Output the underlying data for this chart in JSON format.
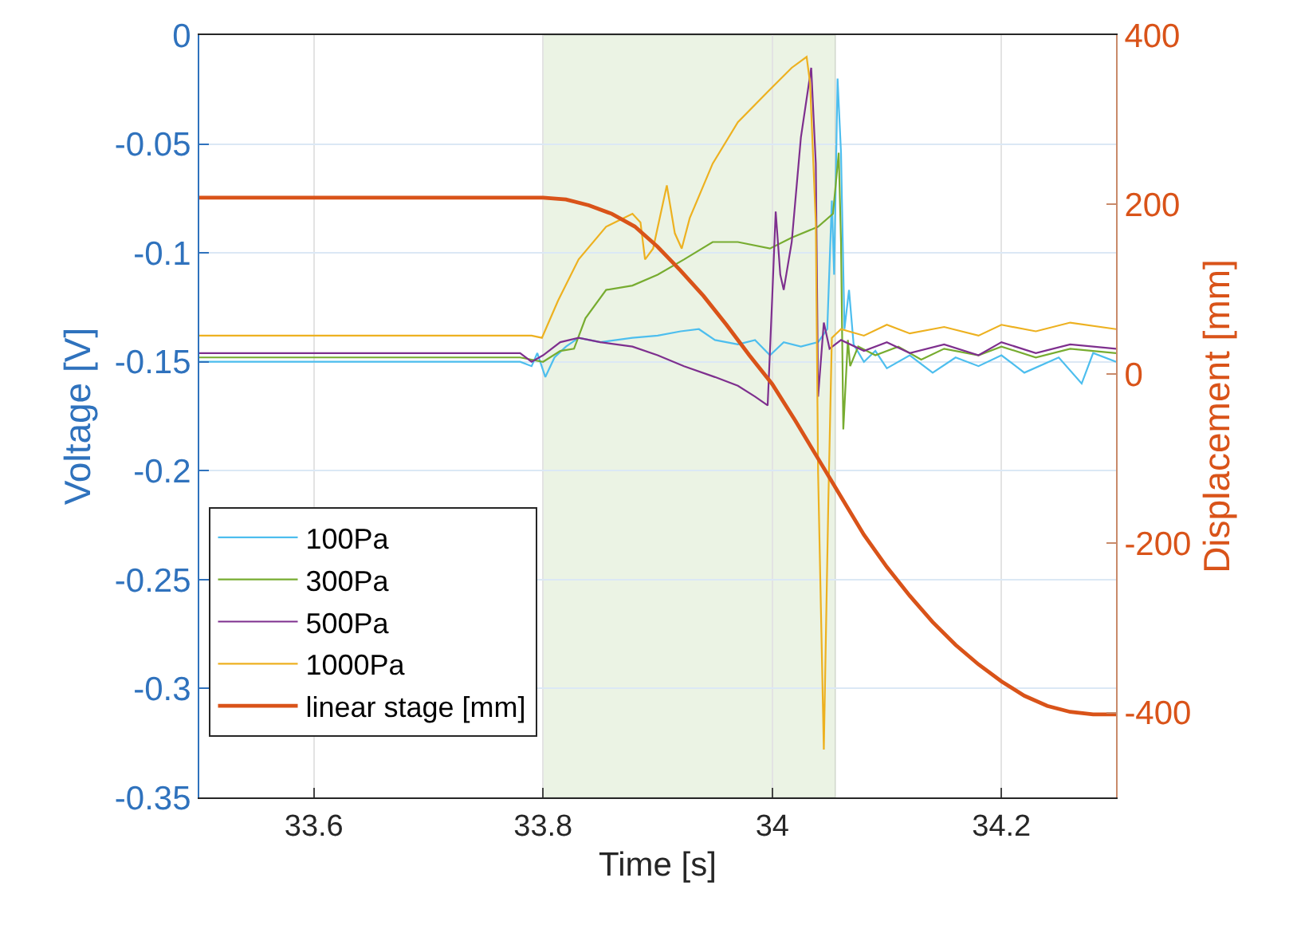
{
  "chart_data": {
    "type": "line",
    "xlabel": "Time [s]",
    "ylabel": "Voltage [V]",
    "y2label": "Displacement [mm]",
    "xlim": [
      33.5,
      34.3
    ],
    "xticks": [
      33.6,
      33.8,
      34,
      34.2
    ],
    "ylim": [
      -0.35,
      0
    ],
    "yticks": [
      0,
      -0.05,
      -0.1,
      -0.15,
      -0.2,
      -0.25,
      -0.3,
      -0.35
    ],
    "y2lim": [
      -500,
      400
    ],
    "y2ticks": [
      400,
      200,
      0,
      -200,
      -400
    ],
    "grid": true,
    "legend": "bottom left",
    "line_style": "solid",
    "marker": "none",
    "bands": [
      {
        "axis": "x",
        "from": 33.8,
        "to": 34.055,
        "color": "#ebf3e4"
      }
    ],
    "series": [
      {
        "name": "100Pa",
        "color": "#4dbeee",
        "x": [
          33.5,
          33.6,
          33.7,
          33.78,
          33.79,
          33.795,
          33.802,
          33.81,
          33.82,
          33.831,
          33.85,
          33.878,
          33.9,
          33.92,
          33.936,
          33.95,
          33.97,
          33.985,
          33.998,
          34.01,
          34.025,
          34.04,
          34.048,
          34.052,
          34.054,
          34.057,
          34.06,
          34.063,
          34.067,
          34.071,
          34.08,
          34.09,
          34.1,
          34.12,
          34.14,
          34.16,
          34.18,
          34.2,
          34.22,
          34.25,
          34.27,
          34.28,
          34.3
        ],
        "values": [
          -0.15,
          -0.15,
          -0.15,
          -0.15,
          -0.152,
          -0.146,
          -0.157,
          -0.148,
          -0.143,
          -0.139,
          -0.141,
          -0.139,
          -0.138,
          -0.136,
          -0.135,
          -0.14,
          -0.142,
          -0.14,
          -0.147,
          -0.141,
          -0.143,
          -0.141,
          -0.135,
          -0.076,
          -0.11,
          -0.02,
          -0.054,
          -0.135,
          -0.117,
          -0.142,
          -0.15,
          -0.145,
          -0.153,
          -0.147,
          -0.155,
          -0.148,
          -0.152,
          -0.147,
          -0.155,
          -0.148,
          -0.16,
          -0.146,
          -0.15
        ]
      },
      {
        "name": "300Pa",
        "color": "#77ac30",
        "x": [
          33.5,
          33.78,
          33.8,
          33.815,
          33.827,
          33.837,
          33.855,
          33.878,
          33.9,
          33.923,
          33.948,
          33.97,
          33.998,
          34.017,
          34.04,
          34.053,
          34.058,
          34.06,
          34.062,
          34.066,
          34.068,
          34.075,
          34.09,
          34.11,
          34.13,
          34.15,
          34.18,
          34.2,
          34.23,
          34.26,
          34.3
        ],
        "values": [
          -0.148,
          -0.148,
          -0.15,
          -0.145,
          -0.144,
          -0.13,
          -0.117,
          -0.115,
          -0.11,
          -0.103,
          -0.095,
          -0.095,
          -0.098,
          -0.093,
          -0.088,
          -0.082,
          -0.054,
          -0.095,
          -0.181,
          -0.14,
          -0.152,
          -0.143,
          -0.147,
          -0.143,
          -0.149,
          -0.144,
          -0.147,
          -0.143,
          -0.148,
          -0.144,
          -0.146
        ]
      },
      {
        "name": "500Pa",
        "color": "#7e2f8e",
        "x": [
          33.5,
          33.78,
          33.79,
          33.8,
          33.815,
          33.831,
          33.85,
          33.878,
          33.9,
          33.923,
          33.95,
          33.97,
          33.985,
          33.996,
          34.0,
          34.003,
          34.007,
          34.01,
          34.017,
          34.025,
          34.034,
          34.038,
          34.04,
          34.045,
          34.05,
          34.06,
          34.08,
          34.1,
          34.12,
          34.15,
          34.18,
          34.2,
          34.23,
          34.26,
          34.3
        ],
        "values": [
          -0.146,
          -0.146,
          -0.15,
          -0.147,
          -0.141,
          -0.139,
          -0.141,
          -0.143,
          -0.147,
          -0.152,
          -0.157,
          -0.161,
          -0.166,
          -0.17,
          -0.12,
          -0.081,
          -0.11,
          -0.117,
          -0.095,
          -0.047,
          -0.015,
          -0.059,
          -0.166,
          -0.132,
          -0.144,
          -0.14,
          -0.145,
          -0.141,
          -0.146,
          -0.142,
          -0.147,
          -0.141,
          -0.146,
          -0.142,
          -0.144
        ]
      },
      {
        "name": "1000Pa",
        "color": "#edb120",
        "x": [
          33.5,
          33.79,
          33.799,
          33.813,
          33.831,
          33.855,
          33.878,
          33.885,
          33.889,
          33.896,
          33.908,
          33.915,
          33.921,
          33.928,
          33.948,
          33.97,
          33.998,
          34.017,
          34.03,
          34.033,
          34.038,
          34.04,
          34.045,
          34.049,
          34.052,
          34.06,
          34.08,
          34.1,
          34.12,
          34.15,
          34.18,
          34.2,
          34.23,
          34.26,
          34.3
        ],
        "values": [
          -0.138,
          -0.138,
          -0.139,
          -0.122,
          -0.103,
          -0.088,
          -0.082,
          -0.086,
          -0.103,
          -0.098,
          -0.069,
          -0.091,
          -0.098,
          -0.084,
          -0.059,
          -0.04,
          -0.025,
          -0.015,
          -0.01,
          -0.022,
          -0.086,
          -0.201,
          -0.328,
          -0.213,
          -0.139,
          -0.135,
          -0.138,
          -0.133,
          -0.137,
          -0.134,
          -0.138,
          -0.133,
          -0.136,
          -0.132,
          -0.135
        ]
      },
      {
        "name": "linear stage [mm]",
        "color": "#d95319",
        "axis": "y2",
        "x": [
          33.5,
          33.8,
          33.82,
          33.84,
          33.86,
          33.88,
          33.9,
          33.92,
          33.94,
          33.96,
          33.98,
          34.0,
          34.02,
          34.04,
          34.06,
          34.08,
          34.1,
          34.12,
          34.14,
          34.16,
          34.18,
          34.2,
          34.22,
          34.24,
          34.26,
          34.28,
          34.3
        ],
        "values": [
          208,
          208,
          206,
          199,
          189,
          174,
          150,
          122,
          92,
          58,
          22,
          -12,
          -55,
          -100,
          -145,
          -190,
          -228,
          -262,
          -293,
          -320,
          -343,
          -363,
          -380,
          -392,
          -399,
          -402,
          -402
        ]
      }
    ]
  }
}
